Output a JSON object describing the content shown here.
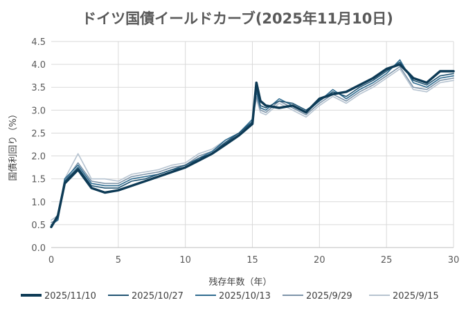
{
  "chart_data": {
    "type": "line",
    "title": "ドイツ国債イールドカーブ(2025年11月10日)",
    "xlabel": "残存年数（年）",
    "ylabel": "国債利回り（%）",
    "xlim": [
      0,
      30
    ],
    "ylim": [
      0,
      4.5
    ],
    "xticks": [
      "0",
      "5",
      "10",
      "15",
      "20",
      "25",
      "30"
    ],
    "yticks": [
      "0.0",
      "0.5",
      "1.0",
      "1.5",
      "2.0",
      "2.5",
      "3.0",
      "3.5",
      "4.0",
      "4.5"
    ],
    "grid": true,
    "legend_position": "bottom",
    "series": [
      {
        "name": "2025/11/10",
        "color": "#0d3a55",
        "width": "thick",
        "x": [
          0,
          0.5,
          1,
          2,
          3,
          4,
          5,
          6,
          7,
          8,
          9,
          10,
          11,
          12,
          13,
          14,
          15,
          15.3,
          15.6,
          16,
          17,
          18,
          19,
          20,
          21,
          22,
          23,
          24,
          25,
          26,
          27,
          28,
          29,
          30
        ],
        "y": [
          0.45,
          0.7,
          1.4,
          1.7,
          1.3,
          1.2,
          1.25,
          1.35,
          1.45,
          1.55,
          1.65,
          1.75,
          1.9,
          2.05,
          2.25,
          2.45,
          2.7,
          3.6,
          3.2,
          3.1,
          3.05,
          3.1,
          2.95,
          3.25,
          3.35,
          3.4,
          3.55,
          3.7,
          3.9,
          4.0,
          3.7,
          3.6,
          3.85,
          3.85
        ]
      },
      {
        "name": "2025/10/27",
        "color": "#1f5372",
        "width": "normal",
        "x": [
          0,
          0.5,
          1,
          2,
          3,
          4,
          5,
          6,
          7,
          8,
          9,
          10,
          11,
          12,
          13,
          14,
          15,
          15.3,
          15.6,
          16,
          17,
          18,
          19,
          20,
          21,
          22,
          23,
          24,
          25,
          26,
          27,
          28,
          29,
          30
        ],
        "y": [
          0.45,
          0.65,
          1.45,
          1.75,
          1.35,
          1.3,
          1.3,
          1.45,
          1.5,
          1.6,
          1.7,
          1.8,
          1.95,
          2.05,
          2.3,
          2.5,
          2.75,
          3.5,
          3.1,
          3.05,
          3.2,
          3.15,
          3.0,
          3.2,
          3.4,
          3.3,
          3.5,
          3.65,
          3.85,
          4.05,
          3.65,
          3.55,
          3.75,
          3.8
        ]
      },
      {
        "name": "2025/10/13",
        "color": "#2e6b8f",
        "width": "normal",
        "x": [
          0,
          0.5,
          1,
          2,
          3,
          4,
          5,
          6,
          7,
          8,
          9,
          10,
          11,
          12,
          13,
          14,
          15,
          15.3,
          15.6,
          16,
          17,
          18,
          19,
          20,
          21,
          22,
          23,
          24,
          25,
          26,
          27,
          28,
          29,
          30
        ],
        "y": [
          0.5,
          0.6,
          1.5,
          1.8,
          1.4,
          1.35,
          1.35,
          1.5,
          1.55,
          1.6,
          1.7,
          1.75,
          1.95,
          2.1,
          2.35,
          2.5,
          2.8,
          3.4,
          3.05,
          3.0,
          3.25,
          3.1,
          2.95,
          3.2,
          3.45,
          3.25,
          3.45,
          3.6,
          3.8,
          4.1,
          3.6,
          3.5,
          3.7,
          3.75
        ]
      },
      {
        "name": "2025/9/29",
        "color": "#7c93a8",
        "width": "normal",
        "x": [
          0,
          0.5,
          1,
          2,
          3,
          4,
          5,
          6,
          7,
          8,
          9,
          10,
          11,
          12,
          13,
          14,
          15,
          15.3,
          15.6,
          16,
          17,
          18,
          19,
          20,
          21,
          22,
          23,
          24,
          25,
          26,
          27,
          28,
          29,
          30
        ],
        "y": [
          0.55,
          0.6,
          1.45,
          1.85,
          1.45,
          1.4,
          1.4,
          1.55,
          1.6,
          1.65,
          1.75,
          1.8,
          2.0,
          2.1,
          2.3,
          2.45,
          2.75,
          3.3,
          3.0,
          2.95,
          3.2,
          3.05,
          2.9,
          3.15,
          3.35,
          3.2,
          3.4,
          3.55,
          3.75,
          3.95,
          3.5,
          3.45,
          3.65,
          3.7
        ]
      },
      {
        "name": "2025/9/15",
        "color": "#b6c3d0",
        "width": "normal",
        "x": [
          0,
          0.5,
          1,
          2,
          3,
          4,
          5,
          6,
          7,
          8,
          9,
          10,
          11,
          12,
          13,
          14,
          15,
          15.3,
          15.6,
          16,
          17,
          18,
          19,
          20,
          21,
          22,
          23,
          24,
          25,
          26,
          27,
          28,
          29,
          30
        ],
        "y": [
          0.6,
          0.7,
          1.5,
          2.05,
          1.5,
          1.5,
          1.45,
          1.6,
          1.65,
          1.7,
          1.8,
          1.85,
          2.05,
          2.15,
          2.35,
          2.5,
          2.8,
          3.25,
          2.95,
          2.9,
          3.15,
          3.0,
          2.85,
          3.1,
          3.3,
          3.15,
          3.35,
          3.5,
          3.7,
          3.9,
          3.45,
          3.4,
          3.6,
          3.65
        ]
      }
    ]
  }
}
